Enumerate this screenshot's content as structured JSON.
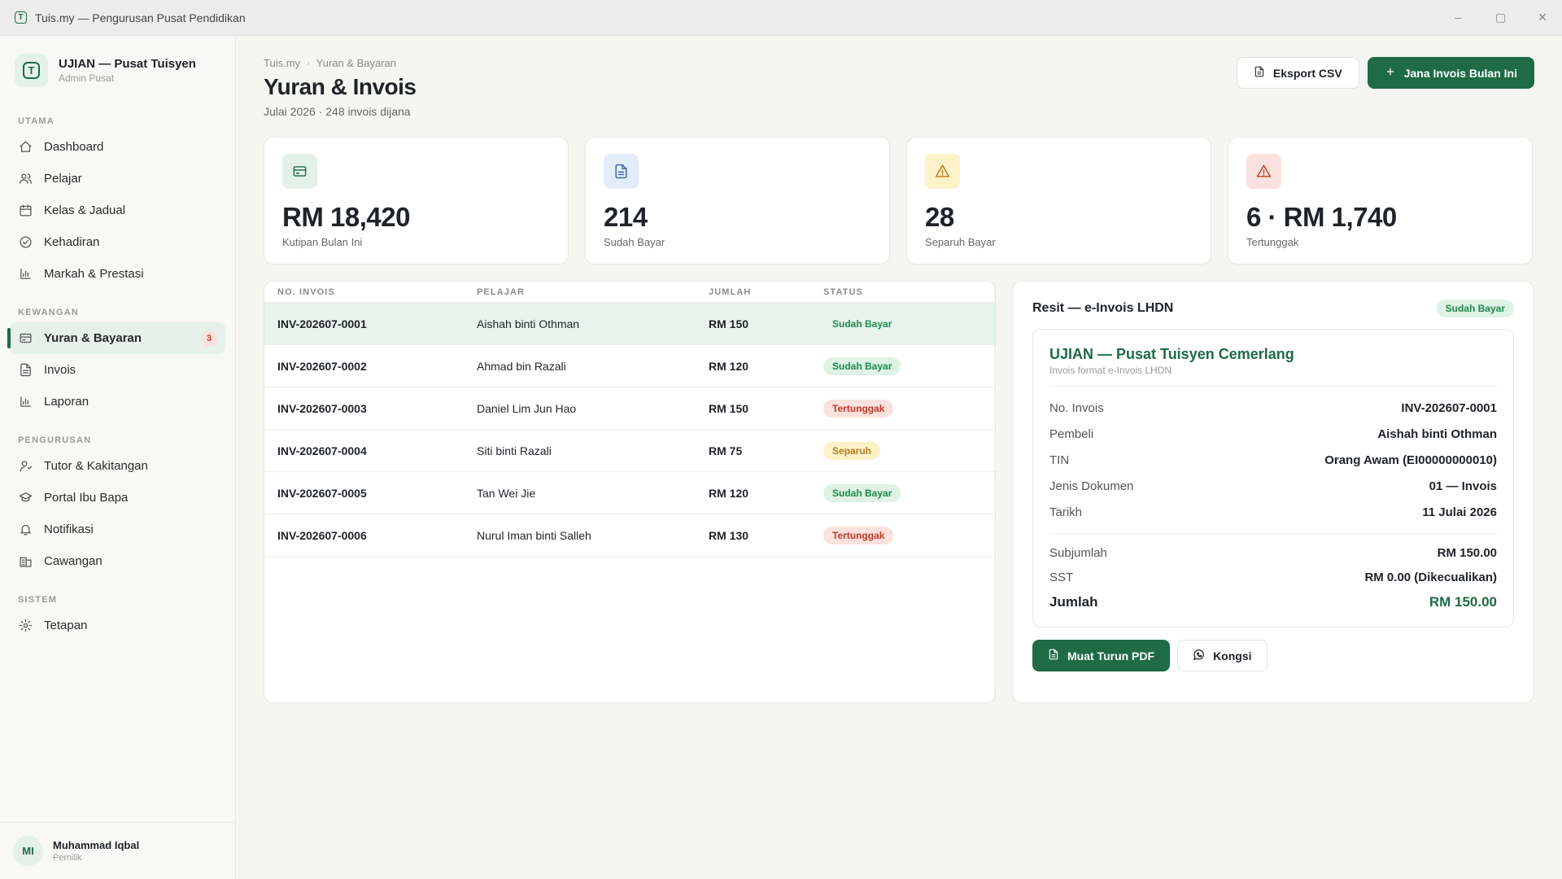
{
  "window": {
    "title": "Tuis.my — Pengurusan Pusat Pendidikan",
    "minimize": "–",
    "maximize": "▢",
    "close": "✕"
  },
  "brand": {
    "name": "UJIAN — Pusat Tuisyen",
    "role": "Admin Pusat",
    "logo_letter": "T"
  },
  "sidebar": {
    "sections": [
      {
        "title": "UTAMA",
        "items": [
          {
            "label": "Dashboard",
            "icon": "home-icon"
          },
          {
            "label": "Pelajar",
            "icon": "users-icon"
          },
          {
            "label": "Kelas & Jadual",
            "icon": "calendar-icon"
          },
          {
            "label": "Kehadiran",
            "icon": "check-circle-icon"
          },
          {
            "label": "Markah & Prestasi",
            "icon": "bar-chart-icon"
          }
        ]
      },
      {
        "title": "KEWANGAN",
        "items": [
          {
            "label": "Yuran & Bayaran",
            "icon": "credit-card-icon",
            "badge": "3",
            "active": true
          },
          {
            "label": "Invois",
            "icon": "file-icon"
          },
          {
            "label": "Laporan",
            "icon": "bar-chart-icon"
          }
        ]
      },
      {
        "title": "PENGURUSAN",
        "items": [
          {
            "label": "Tutor & Kakitangan",
            "icon": "user-icon"
          },
          {
            "label": "Portal Ibu Bapa",
            "icon": "graduation-cap-icon"
          },
          {
            "label": "Notifikasi",
            "icon": "bell-icon"
          },
          {
            "label": "Cawangan",
            "icon": "building-icon"
          }
        ]
      },
      {
        "title": "SISTEM",
        "items": [
          {
            "label": "Tetapan",
            "icon": "gear-icon"
          }
        ]
      }
    ]
  },
  "user": {
    "initials": "MI",
    "name": "Muhammad Iqbal",
    "role": "Pemilik"
  },
  "breadcrumb": {
    "root": "Tuis.my",
    "current": "Yuran & Bayaran",
    "separator": "›"
  },
  "page": {
    "title": "Yuran & Invois",
    "subtitle": "Julai 2026 · 248 invois dijana"
  },
  "actions": {
    "export": "Eksport CSV",
    "generate": "Jana Invois Bulan Ini"
  },
  "stats": [
    {
      "value": "RM 18,420",
      "label": "Kutipan Bulan Ini",
      "icon": "credit-card-icon",
      "bg": "#e3f1e9",
      "fg": "#1e6b46"
    },
    {
      "value": "214",
      "label": "Sudah Bayar",
      "icon": "file-icon",
      "bg": "#e3ecfa",
      "fg": "#3b5fa8"
    },
    {
      "value": "28",
      "label": "Separuh Bayar",
      "icon": "warning-icon",
      "bg": "#fdf1c8",
      "fg": "#b7791f"
    },
    {
      "value": "6 · RM 1,740",
      "label": "Tertunggak",
      "icon": "warning-icon",
      "bg": "#fbe1dd",
      "fg": "#c0392b"
    }
  ],
  "table": {
    "headers": [
      "NO. INVOIS",
      "PELAJAR",
      "JUMLAH",
      "STATUS"
    ],
    "rows": [
      {
        "invoice": "INV-202607-0001",
        "student": "Aishah binti Othman",
        "amount": "RM 150",
        "status": "Sudah Bayar",
        "kind": "paid",
        "selected": true
      },
      {
        "invoice": "INV-202607-0002",
        "student": "Ahmad bin Razali",
        "amount": "RM 120",
        "status": "Sudah Bayar",
        "kind": "paid"
      },
      {
        "invoice": "INV-202607-0003",
        "student": "Daniel Lim Jun Hao",
        "amount": "RM 150",
        "status": "Tertunggak",
        "kind": "over"
      },
      {
        "invoice": "INV-202607-0004",
        "student": "Siti binti Razali",
        "amount": "RM 75",
        "status": "Separuh",
        "kind": "part"
      },
      {
        "invoice": "INV-202607-0005",
        "student": "Tan Wei Jie",
        "amount": "RM 120",
        "status": "Sudah Bayar",
        "kind": "paid"
      },
      {
        "invoice": "INV-202607-0006",
        "student": "Nurul Iman binti Salleh",
        "amount": "RM 130",
        "status": "Tertunggak",
        "kind": "over"
      }
    ]
  },
  "receipt": {
    "title": "Resit — e-Invois LHDN",
    "status": "Sudah Bayar",
    "org": "UJIAN — Pusat Tuisyen Cemerlang",
    "org_sub": "Invois format e-Invois LHDN",
    "fields": [
      {
        "k": "No. Invois",
        "v": "INV-202607-0001"
      },
      {
        "k": "Pembeli",
        "v": "Aishah binti Othman"
      },
      {
        "k": "TIN",
        "v": "Orang Awam (EI00000000010)"
      },
      {
        "k": "Jenis Dokumen",
        "v": "01 — Invois"
      },
      {
        "k": "Tarikh",
        "v": "11 Julai 2026"
      }
    ],
    "subtotal_label": "Subjumlah",
    "subtotal": "RM 150.00",
    "sst_label": "SST",
    "sst": "RM 0.00 (Dikecualikan)",
    "total_label": "Jumlah",
    "total": "RM 150.00",
    "download": "Muat Turun PDF",
    "share": "Kongsi"
  }
}
